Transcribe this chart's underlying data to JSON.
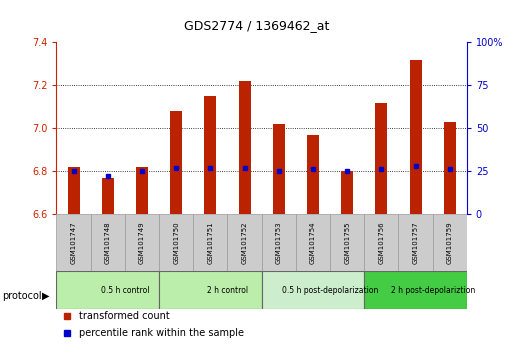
{
  "title": "GDS2774 / 1369462_at",
  "samples": [
    "GSM101747",
    "GSM101748",
    "GSM101749",
    "GSM101750",
    "GSM101751",
    "GSM101752",
    "GSM101753",
    "GSM101754",
    "GSM101755",
    "GSM101756",
    "GSM101757",
    "GSM101759"
  ],
  "transformed_count": [
    6.82,
    6.77,
    6.82,
    7.08,
    7.15,
    7.22,
    7.02,
    6.97,
    6.8,
    7.12,
    7.32,
    7.03
  ],
  "percentile_rank": [
    25,
    22,
    25,
    27,
    27,
    27,
    25,
    26,
    25,
    26,
    28,
    26
  ],
  "bar_bottom": 6.6,
  "ylim_left": [
    6.6,
    7.4
  ],
  "ylim_right": [
    0,
    100
  ],
  "yticks_left": [
    6.6,
    6.8,
    7.0,
    7.2,
    7.4
  ],
  "yticks_right": [
    0,
    25,
    50,
    75,
    100
  ],
  "ytick_labels_right": [
    "0",
    "25",
    "50",
    "75",
    "100%"
  ],
  "grid_values": [
    6.8,
    7.0,
    7.2
  ],
  "bar_color": "#bb2200",
  "dot_color": "#0000cc",
  "bar_width": 0.35,
  "protocol_groups": [
    {
      "label": "0.5 h control",
      "start": 0,
      "end": 3,
      "color": "#bbeeaa"
    },
    {
      "label": "2 h control",
      "start": 3,
      "end": 6,
      "color": "#bbeeaa"
    },
    {
      "label": "0.5 h post-depolarization",
      "start": 6,
      "end": 9,
      "color": "#cceecc"
    },
    {
      "label": "2 h post-depolariztion",
      "start": 9,
      "end": 12,
      "color": "#44cc44"
    }
  ],
  "legend_items": [
    {
      "label": "transformed count",
      "color": "#bb2200"
    },
    {
      "label": "percentile rank within the sample",
      "color": "#0000cc"
    }
  ],
  "left_axis_color": "#cc2200",
  "right_axis_color": "#0000cc",
  "bg_color": "#ffffff",
  "sample_box_color": "#cccccc",
  "sample_box_edge": "#999999",
  "tick_label_color_left": "#cc2200",
  "tick_label_color_right": "#0000cc"
}
